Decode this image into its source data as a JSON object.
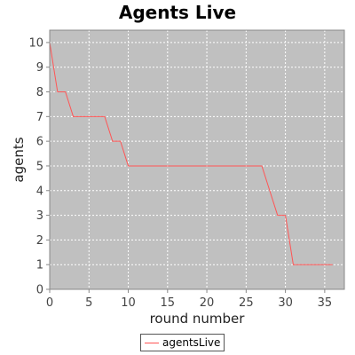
{
  "chart_data": {
    "type": "line",
    "title": "Agents Live",
    "xlabel": "round number",
    "ylabel": "agents",
    "xlim": [
      0,
      37.5
    ],
    "ylim": [
      0,
      10.5
    ],
    "xticks": [
      0,
      5,
      10,
      15,
      20,
      25,
      30,
      35
    ],
    "yticks": [
      0,
      1,
      2,
      3,
      4,
      5,
      6,
      7,
      8,
      9,
      10
    ],
    "grid": true,
    "legend_position": "bottom-center",
    "plot_background": "#c0c0c0",
    "series": [
      {
        "name": "agentsLive",
        "color": "#ff5555",
        "x": [
          0,
          1,
          2,
          3,
          4,
          5,
          6,
          7,
          8,
          9,
          10,
          11,
          12,
          13,
          14,
          15,
          16,
          17,
          18,
          19,
          20,
          21,
          22,
          23,
          24,
          25,
          26,
          27,
          28,
          29,
          30,
          31,
          32,
          33,
          34,
          35,
          36
        ],
        "y": [
          10,
          8,
          8,
          7,
          7,
          7,
          7,
          7,
          6,
          6,
          5,
          5,
          5,
          5,
          5,
          5,
          5,
          5,
          5,
          5,
          5,
          5,
          5,
          5,
          5,
          5,
          5,
          5,
          4,
          3,
          3,
          1,
          1,
          1,
          1,
          1,
          1
        ]
      }
    ]
  }
}
